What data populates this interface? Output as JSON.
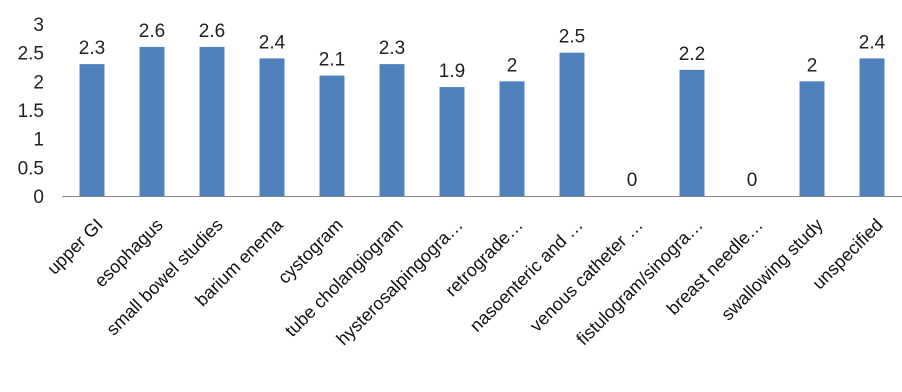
{
  "chart_data": {
    "type": "bar",
    "title": "",
    "xlabel": "",
    "ylabel": "",
    "ylim": [
      0,
      3
    ],
    "yticks": [
      "0",
      "0.5",
      "1",
      "1.5",
      "2",
      "2.5",
      "3"
    ],
    "grid": false,
    "legend": "none",
    "bar_color": "#4f81bd",
    "categories": [
      "upper GI",
      "esophagus",
      "small bowel studies",
      "barium enema",
      "cystogram",
      "tube cholangiogram",
      "hysterosalpingogra…",
      "retrograde…",
      "nasoenteric and …",
      "venous catheter …",
      "fistulogram/sinogra…",
      "breast needle…",
      "swallowing study",
      "unspecified"
    ],
    "values": [
      2.3,
      2.6,
      2.6,
      2.4,
      2.1,
      2.3,
      1.9,
      2,
      2.5,
      0,
      2.2,
      0,
      2,
      2.4
    ],
    "data_labels": [
      "2.3",
      "2.6",
      "2.6",
      "2.4",
      "2.1",
      "2.3",
      "1.9",
      "2",
      "2.5",
      "0",
      "2.2",
      "0",
      "2",
      "2.4"
    ]
  }
}
